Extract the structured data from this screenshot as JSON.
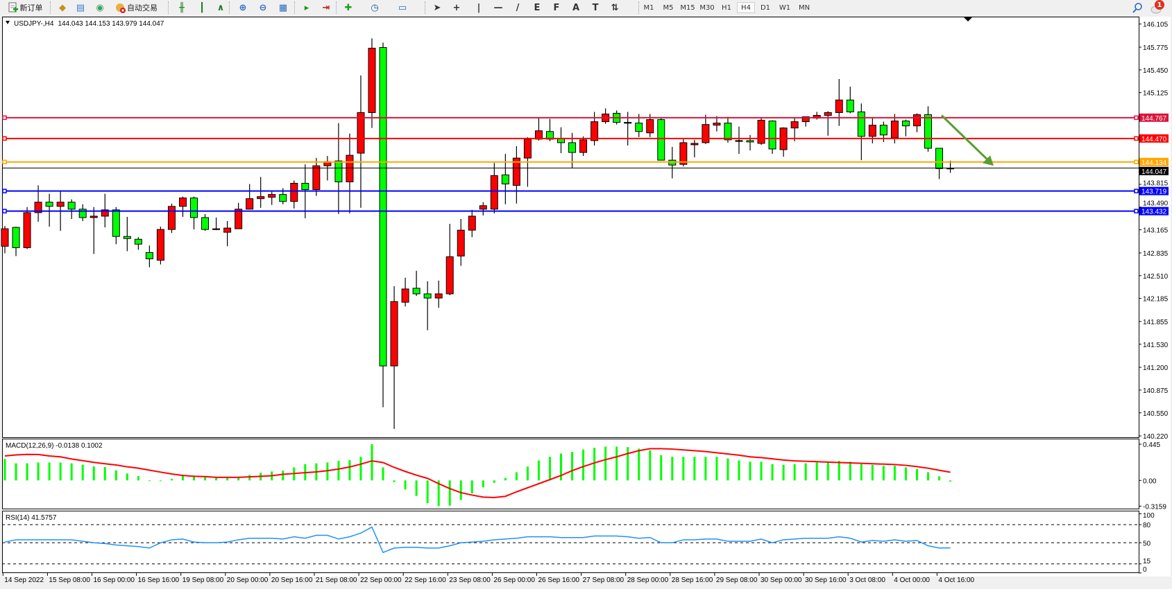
{
  "toolbar": {
    "new_order_label": "新订单",
    "auto_trading_label": "自动交易",
    "tools": [
      {
        "name": "market-watch-icon",
        "glyph": "◆",
        "color": "#c8901e"
      },
      {
        "name": "navigator-icon",
        "glyph": "▤",
        "color": "#3a7ad0"
      },
      {
        "name": "signals-icon",
        "glyph": "◉",
        "color": "#3aa060"
      },
      {
        "name": "bar-chart-icon",
        "glyph": "╫",
        "color": "#1a7a1a"
      },
      {
        "name": "candlestick-icon",
        "glyph": "┃",
        "color": "#1a7a1a"
      },
      {
        "name": "line-chart-icon",
        "glyph": "∧",
        "color": "#1a7a1a"
      },
      {
        "name": "zoom-in-icon",
        "glyph": "⊕",
        "color": "#2a6ac0"
      },
      {
        "name": "zoom-out-icon",
        "glyph": "⊖",
        "color": "#2a6ac0"
      },
      {
        "name": "tile-windows-icon",
        "glyph": "▦",
        "color": "#2a6ac0"
      },
      {
        "name": "auto-scroll-icon",
        "glyph": "▸",
        "color": "#1a9a1a"
      },
      {
        "name": "chart-shift-icon",
        "glyph": "⇥",
        "color": "#c02020"
      },
      {
        "name": "indicators-icon",
        "glyph": "✚",
        "color": "#1aa01a"
      },
      {
        "name": "periods-icon",
        "glyph": "◷",
        "color": "#1a5ab0"
      },
      {
        "name": "templates-icon",
        "glyph": "▭",
        "color": "#2a6ac0"
      },
      {
        "name": "cursor-icon",
        "glyph": "➤",
        "color": "#333333"
      },
      {
        "name": "crosshair-icon",
        "glyph": "+",
        "color": "#333333"
      },
      {
        "name": "vertical-line-icon",
        "glyph": "|",
        "color": "#333333"
      },
      {
        "name": "horizontal-line-icon",
        "glyph": "—",
        "color": "#333333"
      },
      {
        "name": "trendline-icon",
        "glyph": "/",
        "color": "#333333"
      },
      {
        "name": "fibonacci-fan-icon",
        "glyph": "E",
        "color": "#333333"
      },
      {
        "name": "fibonacci-retracement-icon",
        "glyph": "F",
        "color": "#333333"
      },
      {
        "name": "text-icon",
        "glyph": "A",
        "color": "#333333"
      },
      {
        "name": "text-label-icon",
        "glyph": "T",
        "color": "#333333"
      },
      {
        "name": "arrows-icon",
        "glyph": "⇅",
        "color": "#333333"
      }
    ],
    "timeframes": [
      "M1",
      "M5",
      "M15",
      "M30",
      "H1",
      "H4",
      "D1",
      "W1",
      "MN"
    ],
    "active_timeframe": "H4",
    "notification_count": "1"
  },
  "chart": {
    "header": {
      "symbol": "USDJPY-,H4",
      "ohlc": "144.043 144.153 143.979 144.047"
    },
    "colors": {
      "bull": "#ff0000",
      "bear": "#00ff00",
      "bid_line": "#000000",
      "arrow": "#5a9e2f"
    },
    "price_axis_labels": [
      "146.105",
      "145.775",
      "145.450",
      "145.125",
      "143.815",
      "143.490",
      "143.165",
      "142.835",
      "142.510",
      "142.185",
      "141.855",
      "141.530",
      "141.200",
      "140.875",
      "140.550",
      "140.220"
    ],
    "horizontal_lines": [
      {
        "value": "144.767",
        "color": "#dc143c"
      },
      {
        "value": "144.470",
        "color": "#ff0000"
      },
      {
        "value": "144.134",
        "color": "#ffa500"
      },
      {
        "value": "143.719",
        "color": "#0000ff"
      },
      {
        "value": "143.432",
        "color": "#0000ff"
      }
    ],
    "bid": "144.047",
    "annotation_arrow": {
      "from_price": 144.8,
      "to_price": 144.08,
      "direction": "down"
    },
    "time_labels": [
      "14 Sep 2022",
      "15 Sep 08:00",
      "16 Sep 00:00",
      "16 Sep 16:00",
      "19 Sep 08:00",
      "20 Sep 00:00",
      "20 Sep 16:00",
      "21 Sep 08:00",
      "22 Sep 00:00",
      "22 Sep 16:00",
      "23 Sep 08:00",
      "26 Sep 00:00",
      "26 Sep 16:00",
      "27 Sep 08:00",
      "28 Sep 00:00",
      "28 Sep 16:00",
      "29 Sep 08:00",
      "30 Sep 00:00",
      "30 Sep 16:00",
      "3 Oct 08:00",
      "4 Oct 00:00",
      "4 Oct 16:00"
    ]
  },
  "macd": {
    "title": "MACD(12,26,9) -0.0138 0.1002",
    "axis_labels": [
      "0.445",
      "0.00",
      "-0.3159"
    ]
  },
  "rsi": {
    "title": "RSI(14) 41.5757",
    "axis_labels": [
      "100",
      "80",
      "50",
      "15",
      "0"
    ]
  },
  "chart_data": [
    {
      "type": "candlestick",
      "symbol": "USDJPY-",
      "timeframe": "H4",
      "ylim": [
        140.22,
        146.105
      ],
      "ohlc": [
        [
          142.93,
          143.22,
          142.83,
          143.18
        ],
        [
          143.2,
          143.21,
          142.79,
          142.91
        ],
        [
          142.91,
          143.49,
          142.89,
          143.41
        ],
        [
          143.41,
          143.8,
          143.28,
          143.56
        ],
        [
          143.56,
          143.68,
          143.21,
          143.5
        ],
        [
          143.5,
          143.72,
          143.15,
          143.56
        ],
        [
          143.56,
          143.6,
          143.32,
          143.46
        ],
        [
          143.46,
          143.53,
          143.29,
          143.34
        ],
        [
          143.34,
          143.49,
          142.82,
          143.36
        ],
        [
          143.36,
          143.68,
          143.2,
          143.45
        ],
        [
          143.45,
          143.49,
          142.96,
          143.07
        ],
        [
          143.07,
          143.35,
          142.86,
          143.04
        ],
        [
          143.03,
          143.06,
          142.88,
          142.96
        ],
        [
          142.84,
          142.94,
          142.63,
          142.75
        ],
        [
          142.73,
          143.21,
          142.67,
          143.17
        ],
        [
          143.17,
          143.54,
          143.12,
          143.5
        ],
        [
          143.5,
          143.64,
          143.35,
          143.62
        ],
        [
          143.62,
          143.64,
          143.17,
          143.34
        ],
        [
          143.34,
          143.39,
          143.15,
          143.17
        ],
        [
          143.17,
          143.34,
          143.16,
          143.18
        ],
        [
          143.13,
          143.29,
          142.93,
          143.19
        ],
        [
          143.18,
          143.55,
          143.18,
          143.46
        ],
        [
          143.46,
          143.82,
          143.46,
          143.61
        ],
        [
          143.61,
          143.92,
          143.48,
          143.64
        ],
        [
          143.63,
          143.71,
          143.52,
          143.67
        ],
        [
          143.67,
          143.76,
          143.53,
          143.57
        ],
        [
          143.57,
          143.87,
          143.47,
          143.83
        ],
        [
          143.83,
          144.1,
          143.33,
          143.74
        ],
        [
          143.74,
          144.19,
          143.65,
          144.08
        ],
        [
          144.08,
          144.22,
          143.87,
          144.14
        ],
        [
          144.15,
          144.69,
          143.39,
          143.85
        ],
        [
          143.85,
          144.54,
          143.4,
          144.23
        ],
        [
          144.26,
          145.37,
          143.48,
          144.84
        ],
        [
          144.84,
          145.9,
          144.62,
          145.76
        ],
        [
          145.77,
          145.84,
          140.63,
          141.22
        ],
        [
          141.22,
          142.36,
          140.32,
          142.14
        ],
        [
          142.13,
          142.48,
          142.07,
          142.32
        ],
        [
          142.33,
          142.58,
          142.22,
          142.25
        ],
        [
          142.25,
          142.43,
          141.73,
          142.19
        ],
        [
          142.19,
          142.44,
          142.05,
          142.25
        ],
        [
          142.25,
          143.25,
          142.23,
          142.78
        ],
        [
          142.79,
          143.32,
          142.65,
          143.16
        ],
        [
          143.16,
          143.45,
          143.06,
          143.36
        ],
        [
          143.46,
          143.56,
          143.37,
          143.51
        ],
        [
          143.46,
          144.12,
          143.4,
          143.94
        ],
        [
          143.95,
          144.25,
          143.53,
          143.82
        ],
        [
          143.8,
          144.36,
          143.54,
          144.19
        ],
        [
          144.19,
          144.49,
          143.78,
          144.46
        ],
        [
          144.46,
          144.77,
          144.44,
          144.58
        ],
        [
          144.57,
          144.75,
          144.43,
          144.46
        ],
        [
          144.47,
          144.63,
          144.26,
          144.41
        ],
        [
          144.41,
          144.55,
          144.05,
          144.27
        ],
        [
          144.27,
          144.5,
          144.22,
          144.45
        ],
        [
          144.44,
          144.85,
          144.37,
          144.71
        ],
        [
          144.71,
          144.9,
          144.68,
          144.82
        ],
        [
          144.83,
          144.87,
          144.67,
          144.7
        ],
        [
          144.7,
          144.85,
          144.37,
          144.7
        ],
        [
          144.69,
          144.82,
          144.49,
          144.57
        ],
        [
          144.55,
          144.82,
          144.49,
          144.74
        ],
        [
          144.74,
          144.76,
          144.16,
          144.16
        ],
        [
          144.16,
          144.35,
          143.9,
          144.09
        ],
        [
          144.1,
          144.46,
          144.07,
          144.41
        ],
        [
          144.38,
          144.45,
          144.2,
          144.4
        ],
        [
          144.41,
          144.81,
          144.39,
          144.67
        ],
        [
          144.66,
          144.79,
          144.57,
          144.69
        ],
        [
          144.69,
          144.78,
          144.41,
          144.45
        ],
        [
          144.44,
          144.64,
          144.25,
          144.44
        ],
        [
          144.44,
          144.52,
          144.3,
          144.42
        ],
        [
          144.4,
          144.76,
          144.38,
          144.73
        ],
        [
          144.72,
          144.73,
          144.25,
          144.32
        ],
        [
          144.31,
          144.63,
          144.21,
          144.62
        ],
        [
          144.62,
          144.77,
          144.43,
          144.71
        ],
        [
          144.71,
          144.78,
          144.64,
          144.78
        ],
        [
          144.76,
          144.85,
          144.74,
          144.8
        ],
        [
          144.8,
          144.86,
          144.51,
          144.84
        ],
        [
          144.84,
          145.32,
          144.65,
          145.02
        ],
        [
          145.02,
          145.21,
          144.83,
          144.85
        ],
        [
          144.85,
          144.97,
          144.16,
          144.5
        ],
        [
          144.5,
          144.76,
          144.4,
          144.66
        ],
        [
          144.66,
          144.71,
          144.42,
          144.52
        ],
        [
          144.48,
          144.82,
          144.4,
          144.72
        ],
        [
          144.72,
          144.74,
          144.5,
          144.65
        ],
        [
          144.65,
          144.83,
          144.56,
          144.81
        ],
        [
          144.81,
          144.93,
          144.28,
          144.33
        ],
        [
          144.33,
          144.33,
          143.89,
          144.04
        ],
        [
          144.043,
          144.153,
          143.979,
          144.047
        ]
      ]
    },
    {
      "type": "bar",
      "indicator": "MACD(12,26,9)",
      "ylim": [
        -0.3159,
        0.445
      ],
      "histogram": [
        0.263,
        0.21,
        0.21,
        0.22,
        0.22,
        0.22,
        0.21,
        0.193,
        0.172,
        0.164,
        0.123,
        0.085,
        0.053,
        -0.005,
        -0.005,
        0.02,
        0.06,
        0.06,
        0.044,
        0.03,
        0.03,
        0.03,
        0.067,
        0.094,
        0.11,
        0.12,
        0.16,
        0.2,
        0.21,
        0.22,
        0.24,
        0.25,
        0.29,
        0.445,
        0.16,
        -0.02,
        -0.11,
        -0.19,
        -0.28,
        -0.3159,
        -0.31,
        -0.24,
        -0.16,
        -0.085,
        -0.03,
        0.03,
        0.1,
        0.17,
        0.245,
        0.29,
        0.33,
        0.35,
        0.38,
        0.4,
        0.415,
        0.415,
        0.41,
        0.39,
        0.37,
        0.31,
        0.29,
        0.29,
        0.29,
        0.29,
        0.29,
        0.27,
        0.245,
        0.23,
        0.23,
        0.2,
        0.19,
        0.2,
        0.21,
        0.22,
        0.22,
        0.24,
        0.23,
        0.2,
        0.19,
        0.18,
        0.18,
        0.16,
        0.14,
        0.1,
        0.05,
        -0.0138
      ],
      "signal": [
        0.3,
        0.313,
        0.32,
        0.318,
        0.3,
        0.29,
        0.263,
        0.243,
        0.222,
        0.205,
        0.19,
        0.167,
        0.15,
        0.126,
        0.102,
        0.079,
        0.061,
        0.05,
        0.047,
        0.038,
        0.038,
        0.038,
        0.044,
        0.05,
        0.058,
        0.075,
        0.085,
        0.095,
        0.105,
        0.12,
        0.14,
        0.165,
        0.2,
        0.24,
        0.22,
        0.16,
        0.11,
        0.065,
        0.025,
        -0.04,
        -0.1,
        -0.15,
        -0.18,
        -0.205,
        -0.21,
        -0.195,
        -0.14,
        -0.09,
        -0.04,
        0.01,
        0.06,
        0.12,
        0.17,
        0.215,
        0.255,
        0.29,
        0.33,
        0.365,
        0.39,
        0.39,
        0.385,
        0.375,
        0.365,
        0.355,
        0.34,
        0.325,
        0.31,
        0.29,
        0.28,
        0.265,
        0.25,
        0.24,
        0.235,
        0.23,
        0.225,
        0.22,
        0.215,
        0.21,
        0.205,
        0.2,
        0.195,
        0.185,
        0.17,
        0.15,
        0.125,
        0.1002
      ],
      "colors": {
        "histogram": "#00ff00",
        "signal": "#ff0000"
      }
    },
    {
      "type": "line",
      "indicator": "RSI(14)",
      "ylim": [
        0,
        100
      ],
      "levels": [
        80,
        50,
        15
      ],
      "values": [
        51.2,
        55,
        55,
        55,
        55,
        55,
        55,
        52.5,
        50,
        48.8,
        46.3,
        45,
        43.8,
        41.3,
        50,
        55,
        56.2,
        51.2,
        50,
        50,
        51.2,
        55,
        57.5,
        57.5,
        57.5,
        56.2,
        60,
        57.5,
        62.4,
        62.4,
        56.2,
        60,
        66.1,
        76,
        33.9,
        41.3,
        42.5,
        42.5,
        41.3,
        41.3,
        45,
        50,
        51.2,
        52.5,
        55,
        56.2,
        57.5,
        60,
        60,
        60,
        58.7,
        58.7,
        58.7,
        61.2,
        61.2,
        61.2,
        60,
        57.5,
        58.7,
        50,
        50,
        55,
        55,
        56.2,
        56.2,
        52.5,
        52.5,
        52.5,
        56.2,
        50,
        55,
        56.2,
        57.5,
        57.5,
        57.5,
        60,
        57.5,
        51.2,
        53.8,
        52.5,
        55,
        52.5,
        53.8,
        45,
        41.3,
        41.5757
      ],
      "color": "#1e90ff"
    }
  ]
}
